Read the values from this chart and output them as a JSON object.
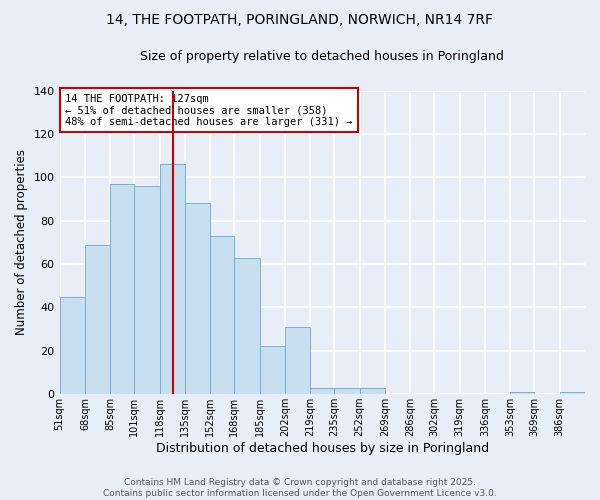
{
  "title": "14, THE FOOTPATH, PORINGLAND, NORWICH, NR14 7RF",
  "subtitle": "Size of property relative to detached houses in Poringland",
  "xlabel": "Distribution of detached houses by size in Poringland",
  "ylabel": "Number of detached properties",
  "footer_line1": "Contains HM Land Registry data © Crown copyright and database right 2025.",
  "footer_line2": "Contains public sector information licensed under the Open Government Licence v3.0.",
  "annotation_line1": "14 THE FOOTPATH: 127sqm",
  "annotation_line2": "← 51% of detached houses are smaller (358)",
  "annotation_line3": "48% of semi-detached houses are larger (331) →",
  "bar_edges": [
    51,
    68,
    85,
    101,
    118,
    135,
    152,
    168,
    185,
    202,
    219,
    235,
    252,
    269,
    286,
    302,
    319,
    336,
    353,
    369,
    386
  ],
  "bar_heights": [
    45,
    69,
    97,
    96,
    106,
    88,
    73,
    63,
    22,
    31,
    3,
    3,
    3,
    0,
    0,
    0,
    0,
    0,
    1,
    0,
    1
  ],
  "bar_color": "#c8dff0",
  "bar_edge_color": "#7ab0d4",
  "vline_x": 127,
  "vline_color": "#cc0000",
  "ylim": [
    0,
    140
  ],
  "xlim": [
    51,
    403
  ],
  "tick_labels": [
    "51sqm",
    "68sqm",
    "85sqm",
    "101sqm",
    "118sqm",
    "135sqm",
    "152sqm",
    "168sqm",
    "185sqm",
    "202sqm",
    "219sqm",
    "235sqm",
    "252sqm",
    "269sqm",
    "286sqm",
    "302sqm",
    "319sqm",
    "336sqm",
    "353sqm",
    "369sqm",
    "386sqm"
  ],
  "background_color": "#e8eef8",
  "grid_color": "#ffffff",
  "annotation_box_color": "#ffffff",
  "annotation_box_edge": "#cc0000",
  "title_fontsize": 10,
  "subtitle_fontsize": 9
}
